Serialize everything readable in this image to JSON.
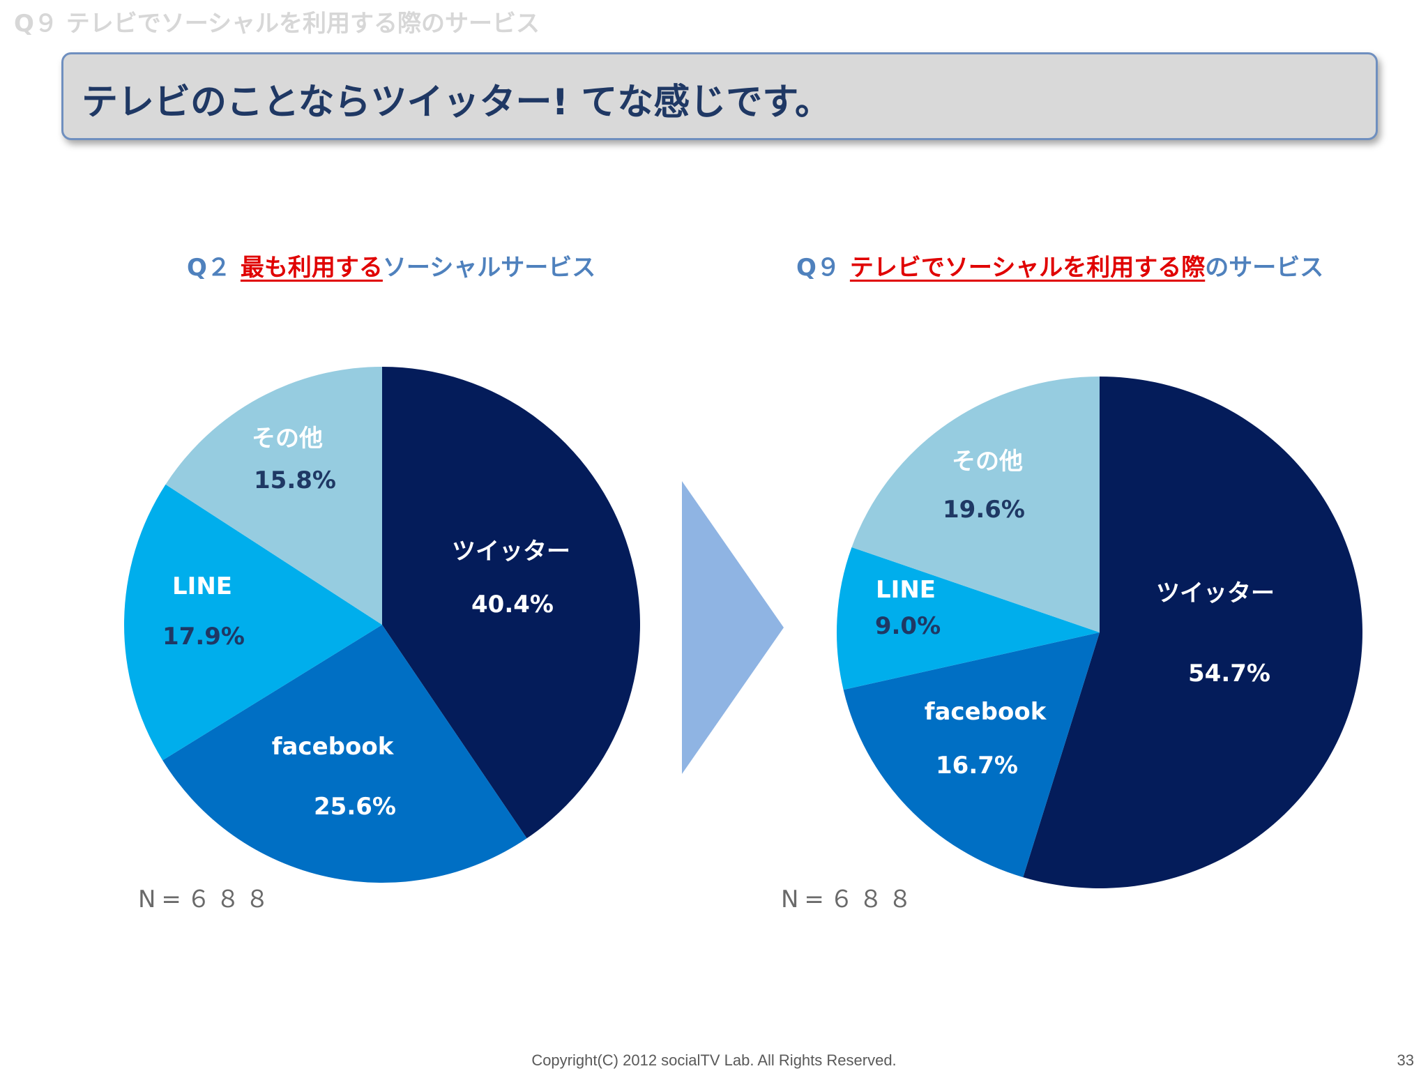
{
  "header": {
    "title": "Q９ テレビでソーシャルを利用する際のサービス"
  },
  "headline": {
    "text": "テレビのことならツイッター! てな感じです。"
  },
  "colors": {
    "twitter": "#041c5a",
    "facebook": "#006fc4",
    "line": "#00aeec",
    "other": "#96cce0",
    "arrow": "#8fb4e3"
  },
  "chart_data": [
    {
      "type": "pie",
      "title": {
        "qnum": "Q２",
        "highlight": "最も利用する",
        "rest": "ソーシャルサービス"
      },
      "n_label": "N=６８８",
      "slices": [
        {
          "name": "ツイッター",
          "value": 40.4,
          "value_label": "40.4%",
          "color": "#041c5a",
          "text_color": "#ffffff"
        },
        {
          "name": "facebook",
          "value": 25.6,
          "value_label": "25.6%",
          "color": "#006fc4",
          "text_color": "#ffffff"
        },
        {
          "name": "LINE",
          "value": 17.9,
          "value_label": "17.9%",
          "color": "#00aeec",
          "text_color": "#ffffff",
          "value_text_color": "#1f3864"
        },
        {
          "name": "その他",
          "value": 15.8,
          "value_label": "15.8%",
          "color": "#96cce0",
          "text_color": "#ffffff",
          "value_text_color": "#1f3864"
        }
      ]
    },
    {
      "type": "pie",
      "title": {
        "qnum": "Q９",
        "highlight": "テレビでソーシャルを利用する際",
        "rest": "のサービス"
      },
      "n_label": "N=６８８",
      "slices": [
        {
          "name": "ツイッター",
          "value": 54.7,
          "value_label": "54.7%",
          "color": "#041c5a",
          "text_color": "#ffffff"
        },
        {
          "name": "facebook",
          "value": 16.7,
          "value_label": "16.7%",
          "color": "#006fc4",
          "text_color": "#ffffff"
        },
        {
          "name": "LINE",
          "value": 9.0,
          "value_label": "9.0%",
          "color": "#00aeec",
          "text_color": "#ffffff",
          "value_text_color": "#1f3864"
        },
        {
          "name": "その他",
          "value": 19.6,
          "value_label": "19.6%",
          "color": "#96cce0",
          "text_color": "#ffffff",
          "value_text_color": "#1f3864"
        }
      ]
    }
  ],
  "footer": {
    "copyright": "Copyright(C) 2012 socialTV Lab. All Rights Reserved.",
    "page": "33"
  }
}
